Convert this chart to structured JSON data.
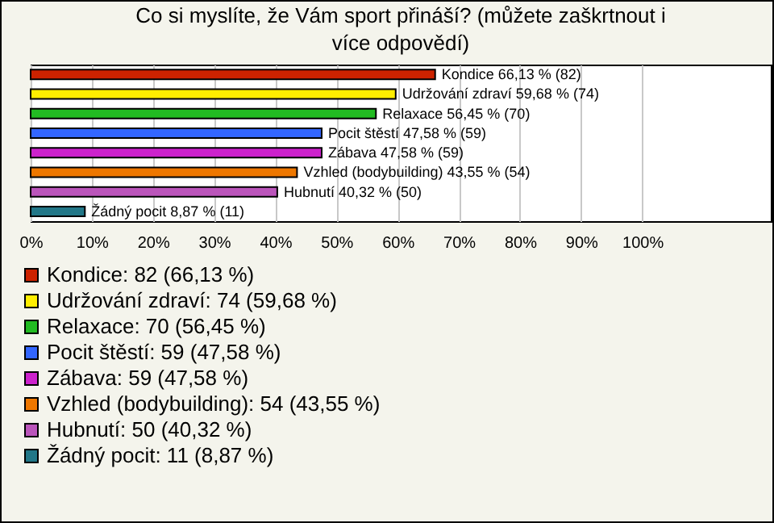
{
  "chart_data": {
    "type": "bar",
    "orientation": "horizontal",
    "title": "Co si myslíte, že Vám sport přináší? (můžete zaškrtnout i více odpovědí)",
    "categories": [
      null,
      null,
      null,
      null,
      null,
      null,
      null,
      null
    ],
    "series": [
      {
        "name": "Kondice: 82 (66,13 %)",
        "color": "#cc2200",
        "values": [
          66.13,
          null,
          null,
          null,
          null,
          null,
          null,
          null
        ],
        "value_labels": [
          "Kondice 66,13 % (82)",
          null,
          null,
          null,
          null,
          null,
          null,
          null
        ]
      },
      {
        "name": "Udržování zdraví: 74 (59,68 %)",
        "color": "#ffee00",
        "values": [
          null,
          59.68,
          null,
          null,
          null,
          null,
          null,
          null
        ],
        "value_labels": [
          null,
          "Udržování zdraví 59,68 % (74)",
          null,
          null,
          null,
          null,
          null,
          null
        ]
      },
      {
        "name": "Relaxace: 70 (56,45 %)",
        "color": "#22bb22",
        "values": [
          null,
          null,
          56.45,
          null,
          null,
          null,
          null,
          null
        ],
        "value_labels": [
          null,
          null,
          "Relaxace 56,45 % (70)",
          null,
          null,
          null,
          null,
          null
        ]
      },
      {
        "name": "Pocit štěstí: 59 (47,58 %)",
        "color": "#3366ff",
        "values": [
          null,
          null,
          null,
          47.58,
          null,
          null,
          null,
          null
        ],
        "value_labels": [
          null,
          null,
          null,
          "Pocit štěstí 47,58 % (59)",
          null,
          null,
          null,
          null
        ]
      },
      {
        "name": "Zábava: 59 (47,58 %)",
        "color": "#cc22cc",
        "values": [
          null,
          null,
          null,
          null,
          47.58,
          null,
          null,
          null
        ],
        "value_labels": [
          null,
          null,
          null,
          null,
          "Zábava 47,58 % (59)",
          null,
          null,
          null
        ]
      },
      {
        "name": "Vzhled (bodybuilding): 54 (43,55 %)",
        "color": "#ee7700",
        "values": [
          null,
          null,
          null,
          null,
          null,
          43.55,
          null,
          null
        ],
        "value_labels": [
          null,
          null,
          null,
          null,
          null,
          "Vzhled (bodybuilding) 43,55 % (54)",
          null,
          null
        ]
      },
      {
        "name": "Hubnutí: 50 (40,32 %)",
        "color": "#bb55bb",
        "values": [
          null,
          null,
          null,
          null,
          null,
          null,
          40.32,
          null
        ],
        "value_labels": [
          null,
          null,
          null,
          null,
          null,
          null,
          "Hubnutí 40,32 % (50)",
          null
        ]
      },
      {
        "name": "Žádný pocit: 11 (8,87 %)",
        "color": "#227788",
        "values": [
          null,
          null,
          null,
          null,
          null,
          null,
          null,
          8.87
        ],
        "value_labels": [
          null,
          null,
          null,
          null,
          null,
          null,
          null,
          "Žádný pocit 8,87 % (11)"
        ]
      }
    ],
    "xlim": [
      0,
      121
    ],
    "xticks": [
      {
        "value": 0,
        "label": "0%"
      },
      {
        "value": 10,
        "label": "10%"
      },
      {
        "value": 20,
        "label": "20%"
      },
      {
        "value": 30,
        "label": "30%"
      },
      {
        "value": 40,
        "label": "40%"
      },
      {
        "value": 50,
        "label": "50%"
      },
      {
        "value": 60,
        "label": "60%"
      },
      {
        "value": 70,
        "label": "70%"
      },
      {
        "value": 80,
        "label": "80%"
      },
      {
        "value": 90,
        "label": "90%"
      },
      {
        "value": 100,
        "label": "100%"
      }
    ],
    "tick_labels": "x",
    "grid": "x",
    "legend": "bottom"
  }
}
